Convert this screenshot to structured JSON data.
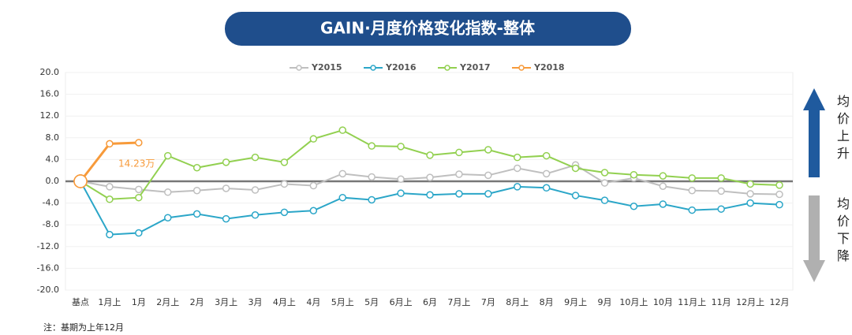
{
  "chart_data": {
    "type": "line",
    "title": "GAIN·月度价格变化指数-整体",
    "categories": [
      "基点",
      "1月上",
      "1月",
      "2月上",
      "2月",
      "3月上",
      "3月",
      "4月上",
      "4月",
      "5月上",
      "5月",
      "6月上",
      "6月",
      "7月上",
      "7月",
      "8月上",
      "8月",
      "9月上",
      "9月",
      "10月上",
      "10月",
      "11月上",
      "11月",
      "12月上",
      "12月"
    ],
    "series": [
      {
        "name": "Y2015",
        "color": "#bfbfbf",
        "values": [
          0,
          -1.0,
          -1.5,
          -2.0,
          -1.7,
          -1.3,
          -1.6,
          -0.5,
          -0.8,
          1.4,
          0.8,
          0.4,
          0.7,
          1.3,
          1.1,
          2.4,
          1.4,
          3.0,
          -0.3,
          0.6,
          -0.9,
          -1.7,
          -1.8,
          -2.3,
          -2.4
        ]
      },
      {
        "name": "Y2016",
        "color": "#2ba6c8",
        "values": [
          0,
          -9.8,
          -9.5,
          -6.7,
          -6.0,
          -6.9,
          -6.2,
          -5.7,
          -5.4,
          -3.0,
          -3.4,
          -2.2,
          -2.5,
          -2.3,
          -2.3,
          -1.0,
          -1.2,
          -2.6,
          -3.5,
          -4.6,
          -4.2,
          -5.3,
          -5.1,
          -4.0,
          -4.3
        ]
      },
      {
        "name": "Y2017",
        "color": "#92d050",
        "values": [
          0,
          -3.3,
          -3.0,
          4.7,
          2.5,
          3.5,
          4.4,
          3.5,
          7.8,
          9.4,
          6.5,
          6.4,
          4.8,
          5.3,
          5.8,
          4.4,
          4.7,
          2.4,
          1.6,
          1.2,
          1.0,
          0.6,
          0.6,
          -0.5,
          -0.7
        ]
      },
      {
        "name": "Y2018",
        "color": "#f79a3a",
        "values": [
          0,
          6.9,
          7.1,
          null,
          null,
          null,
          null,
          null,
          null,
          null,
          null,
          null,
          null,
          null,
          null,
          null,
          null,
          null,
          null,
          null,
          null,
          null,
          null,
          null,
          null
        ]
      }
    ],
    "ylim": [
      -20,
      20
    ],
    "yticks": [
      {
        "value": -20,
        "label": "-20.0"
      },
      {
        "value": -16,
        "label": "-16.0"
      },
      {
        "value": -12,
        "label": "-12.0"
      },
      {
        "value": -8,
        "label": "-8.0"
      },
      {
        "value": -4,
        "label": "-4.0"
      },
      {
        "value": 0,
        "label": "0.0"
      },
      {
        "value": 4,
        "label": "4.0"
      },
      {
        "value": 8,
        "label": "8.0"
      },
      {
        "value": 12,
        "label": "12.0"
      },
      {
        "value": 16,
        "label": "16.0"
      },
      {
        "value": 20,
        "label": "20.0"
      }
    ],
    "grid": true,
    "annotation": "14.23万",
    "up_label": "均价上升",
    "down_label": "均价下降",
    "note": "注：基期为上年12月"
  }
}
